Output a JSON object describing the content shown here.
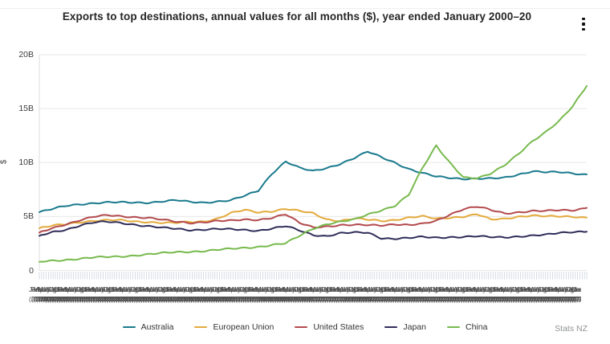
{
  "header": {
    "title": "Exports to top destinations, annual values for all months ($), year ended January 2000–20",
    "menu_icon": "kebab-vertical"
  },
  "footer": {
    "source": "Stats NZ"
  },
  "chart_data": {
    "type": "line",
    "title": "Exports to top destinations, annual values for all months ($), year ended January 2000–20",
    "ylabel": "$",
    "ylim": [
      0,
      20
    ],
    "grid": true,
    "legend_position": "bottom",
    "y_ticks": [
      {
        "label": "0",
        "value": 0
      },
      {
        "label": "5B",
        "value": 5
      },
      {
        "label": "10B",
        "value": 10
      },
      {
        "label": "15B",
        "value": 15
      },
      {
        "label": "20B",
        "value": 20
      }
    ],
    "x_axis": {
      "unit": "month",
      "start_label": "Jan 2000",
      "end_label": "Jan 2020",
      "tick_count": 241,
      "months": [
        "Jan",
        "Feb",
        "Mar",
        "Apr",
        "May",
        "Jun",
        "Jul",
        "Aug",
        "Sep",
        "Oct",
        "Nov",
        "Dec"
      ],
      "year_start": 2000,
      "year_end": 2020,
      "note": "monthly tick labels overlap and are illegible"
    },
    "x": [
      2000,
      2000.5,
      2001,
      2001.5,
      2002,
      2002.5,
      2003,
      2003.5,
      2004,
      2004.5,
      2005,
      2005.5,
      2006,
      2006.5,
      2007,
      2007.5,
      2008,
      2008.5,
      2009,
      2009.5,
      2010,
      2010.5,
      2011,
      2011.5,
      2012,
      2012.5,
      2013,
      2013.5,
      2014,
      2014.5,
      2015,
      2015.5,
      2016,
      2016.5,
      2017,
      2017.5,
      2018,
      2018.5,
      2019,
      2019.5,
      2020
    ],
    "series": [
      {
        "name": "Australia",
        "color": "#1a7a8d",
        "values": [
          5.4,
          5.7,
          6.0,
          6.15,
          6.25,
          6.3,
          6.3,
          6.3,
          6.3,
          6.4,
          6.5,
          6.35,
          6.3,
          6.4,
          6.5,
          6.9,
          7.4,
          9.0,
          10.1,
          9.5,
          9.2,
          9.5,
          9.9,
          10.4,
          11.0,
          10.5,
          10.0,
          9.4,
          9.0,
          8.7,
          8.6,
          8.5,
          8.5,
          8.5,
          8.6,
          8.9,
          9.2,
          9.1,
          9.1,
          9.0,
          8.9
        ]
      },
      {
        "name": "European Union",
        "color": "#e3aa3c",
        "values": [
          3.9,
          4.15,
          4.3,
          4.5,
          4.6,
          4.65,
          4.65,
          4.55,
          4.5,
          4.4,
          4.4,
          4.5,
          4.55,
          4.8,
          5.3,
          5.6,
          5.4,
          5.5,
          5.7,
          5.5,
          5.3,
          4.75,
          4.6,
          4.8,
          4.7,
          4.6,
          4.7,
          4.9,
          5.0,
          4.8,
          4.9,
          5.0,
          5.2,
          4.7,
          4.8,
          5.0,
          5.1,
          5.0,
          5.0,
          5.0,
          4.9
        ]
      },
      {
        "name": "United States",
        "color": "#b34a4e",
        "values": [
          3.5,
          3.9,
          4.3,
          4.7,
          5.0,
          5.1,
          5.0,
          4.95,
          4.9,
          4.7,
          4.5,
          4.4,
          4.5,
          4.6,
          4.6,
          4.7,
          4.7,
          4.9,
          5.2,
          4.4,
          4.0,
          4.1,
          4.2,
          4.2,
          4.2,
          4.2,
          4.3,
          4.2,
          4.3,
          4.6,
          5.2,
          5.7,
          5.9,
          5.6,
          5.3,
          5.4,
          5.5,
          5.5,
          5.6,
          5.6,
          5.8
        ]
      },
      {
        "name": "Japan",
        "color": "#312e5a",
        "values": [
          3.2,
          3.55,
          3.8,
          4.2,
          4.45,
          4.5,
          4.4,
          4.25,
          4.1,
          3.95,
          3.85,
          3.75,
          3.8,
          3.85,
          3.8,
          3.75,
          3.7,
          3.9,
          4.1,
          3.7,
          3.3,
          3.2,
          3.45,
          3.5,
          3.5,
          3.0,
          2.95,
          3.0,
          3.1,
          3.05,
          3.1,
          3.1,
          3.15,
          3.1,
          3.1,
          3.15,
          3.2,
          3.3,
          3.5,
          3.6,
          3.6
        ]
      },
      {
        "name": "China",
        "color": "#78ba4e",
        "values": [
          0.8,
          0.9,
          1.0,
          1.1,
          1.2,
          1.25,
          1.3,
          1.4,
          1.5,
          1.6,
          1.7,
          1.75,
          1.8,
          1.9,
          2.0,
          2.1,
          2.2,
          2.35,
          2.5,
          3.2,
          3.9,
          4.3,
          4.5,
          4.7,
          5.2,
          5.6,
          6.0,
          7.0,
          9.5,
          11.6,
          10.0,
          8.6,
          8.5,
          9.0,
          9.8,
          10.8,
          11.9,
          12.8,
          13.9,
          15.3,
          17.1
        ]
      }
    ],
    "colors": {
      "grid": "#e7e7e7",
      "axis": "#dcdcdc",
      "tick_band": "#c3ced8"
    }
  }
}
